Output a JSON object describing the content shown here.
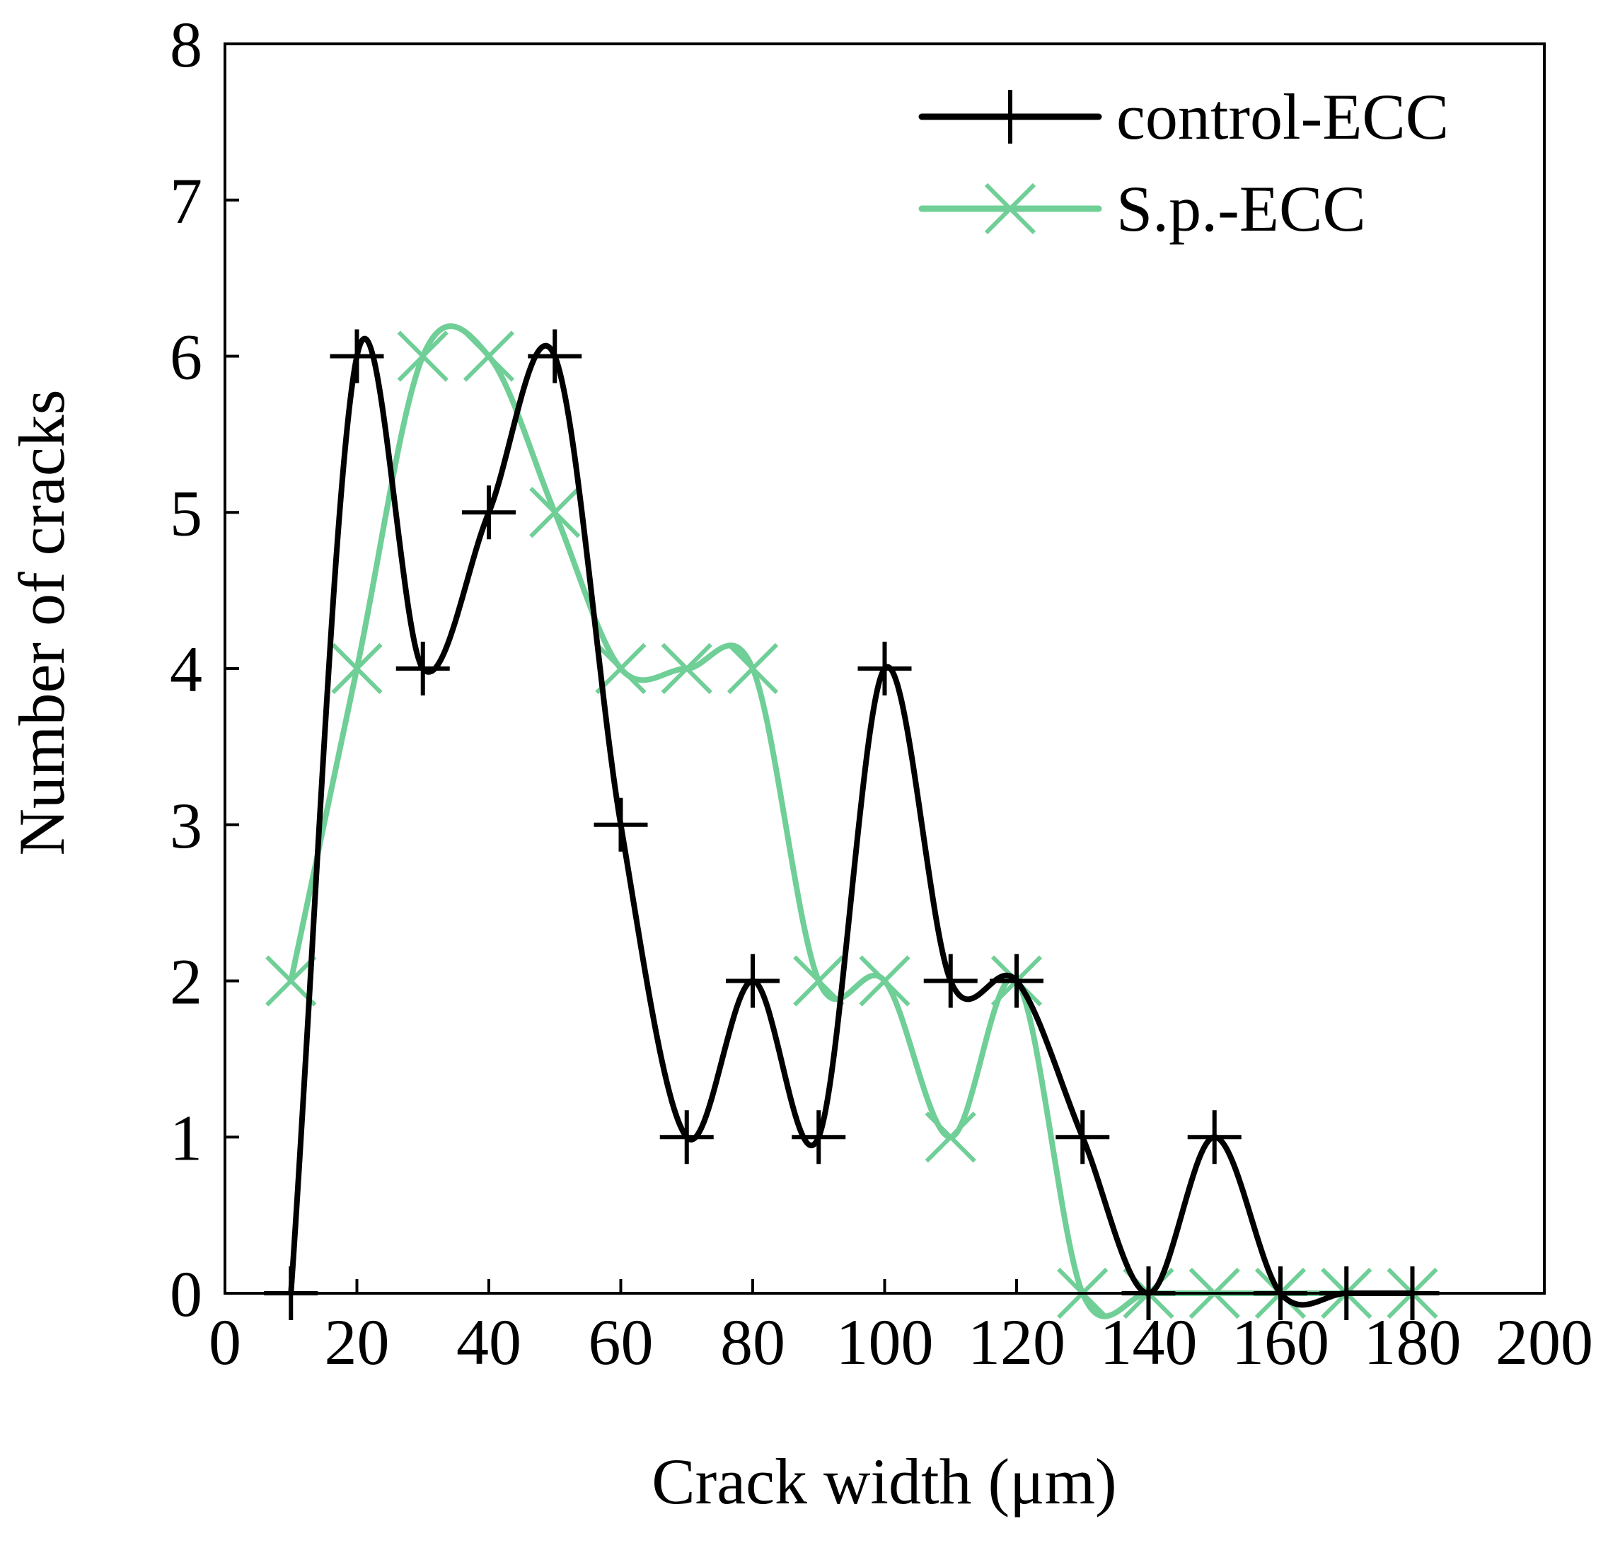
{
  "chart_data": {
    "type": "line",
    "title": "",
    "xlabel": "Crack width (μm)",
    "ylabel": "Number of cracks",
    "xlim": [
      0,
      200
    ],
    "ylim": [
      0,
      8
    ],
    "xticks": [
      0,
      20,
      40,
      60,
      80,
      100,
      120,
      140,
      160,
      180,
      200
    ],
    "yticks": [
      0,
      1,
      2,
      3,
      4,
      5,
      6,
      7,
      8
    ],
    "grid": false,
    "legend_position": "top-right",
    "series": [
      {
        "name": "control-ECC",
        "marker": "plus",
        "color": "#000000",
        "x": [
          10,
          20,
          30,
          40,
          50,
          60,
          70,
          80,
          90,
          100,
          110,
          120,
          130,
          140,
          150,
          160,
          170,
          180
        ],
        "y": [
          0,
          6,
          4,
          5,
          6,
          3,
          1,
          2,
          1,
          4,
          2,
          2,
          1,
          0,
          1,
          0,
          0,
          0
        ]
      },
      {
        "name": "S.p.-ECC",
        "marker": "cross",
        "color": "#6fcf97",
        "x": [
          10,
          20,
          30,
          40,
          50,
          60,
          70,
          80,
          90,
          100,
          110,
          120,
          130,
          140,
          150,
          160,
          170,
          180
        ],
        "y": [
          2,
          4,
          6,
          6,
          5,
          4,
          4,
          4,
          2,
          2,
          1,
          2,
          0,
          0,
          0,
          0,
          0,
          0
        ]
      }
    ]
  }
}
